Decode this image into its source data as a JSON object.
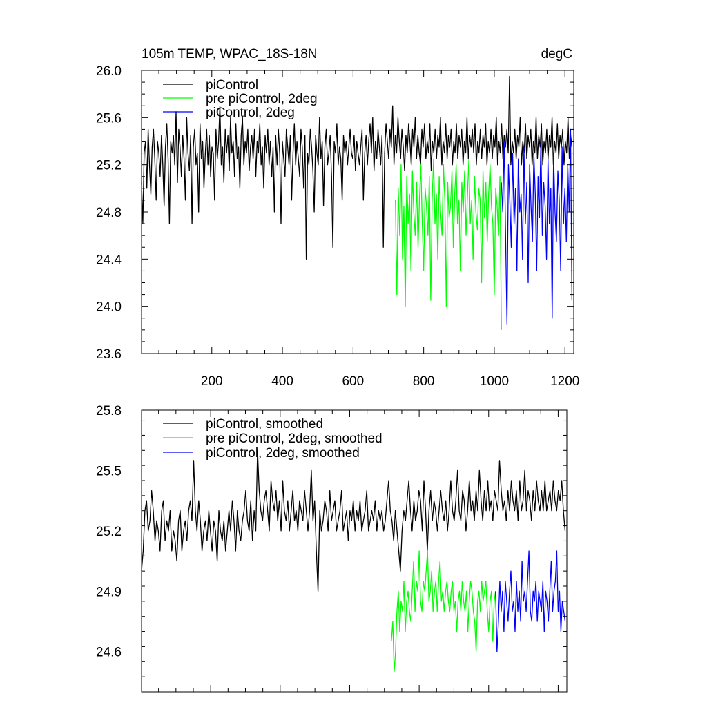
{
  "figure": {
    "top_panel": {
      "title_left": "105m TEMP, WPAC_18S-18N",
      "title_right": "degC"
    }
  },
  "colors": {
    "black": "#000000",
    "green": "#00ff00",
    "blue": "#0000ff"
  },
  "chart_data": [
    {
      "type": "line",
      "title": "105m TEMP, WPAC_18S-18N",
      "units": "degC",
      "xlim": [
        1,
        1225
      ],
      "ylim": [
        23.6,
        26.0
      ],
      "x_ticks": [
        200,
        400,
        600,
        800,
        1000,
        1200
      ],
      "x_tick_labels": [
        "200",
        "400",
        "600",
        "800",
        "1000",
        "1200"
      ],
      "y_ticks": [
        23.6,
        24.0,
        24.4,
        24.8,
        25.2,
        25.6,
        26.0
      ],
      "y_tick_labels": [
        "23.6",
        "24.0",
        "24.4",
        "24.8",
        "25.2",
        "25.6",
        "26.0"
      ],
      "grid": false,
      "legend_position": "top-left",
      "series": [
        {
          "name": "piControl",
          "color": "#000000",
          "x_start": 1,
          "x_end": 1220,
          "x_step": 4,
          "values": [
            25.05,
            24.7,
            25.3,
            25.4,
            25.0,
            25.5,
            25.2,
            24.95,
            25.35,
            25.5,
            25.25,
            24.9,
            25.4,
            25.3,
            25.1,
            25.45,
            25.2,
            24.85,
            25.35,
            25.55,
            25.25,
            24.7,
            25.4,
            25.3,
            25.45,
            25.2,
            25.65,
            25.05,
            25.5,
            25.35,
            25.1,
            25.45,
            25.25,
            24.9,
            25.6,
            25.3,
            25.15,
            25.45,
            24.7,
            25.35,
            25.5,
            25.2,
            25.3,
            24.8,
            25.55,
            25.25,
            25.4,
            25.0,
            25.3,
            25.5,
            25.2,
            25.45,
            25.1,
            25.35,
            25.3,
            24.9,
            25.5,
            25.25,
            25.4,
            25.7,
            25.2,
            25.35,
            25.05,
            25.5,
            25.3,
            25.45,
            25.15,
            25.6,
            25.3,
            25.4,
            25.1,
            25.55,
            25.25,
            25.35,
            25.0,
            25.45,
            25.6,
            25.2,
            25.4,
            25.3,
            25.5,
            25.15,
            25.35,
            25.45,
            25.25,
            25.5,
            25.1,
            25.4,
            25.3,
            25.55,
            25.2,
            25.35,
            25.0,
            25.45,
            25.3,
            25.5,
            25.2,
            25.4,
            25.1,
            25.35,
            24.8,
            25.45,
            25.2,
            25.5,
            25.3,
            24.7,
            25.4,
            25.25,
            25.1,
            25.5,
            25.35,
            25.2,
            25.45,
            24.9,
            25.3,
            25.55,
            25.2,
            25.4,
            25.25,
            25.1,
            25.5,
            25.35,
            25.0,
            25.45,
            24.4,
            25.3,
            25.2,
            25.5,
            25.35,
            25.15,
            24.8,
            25.45,
            25.3,
            25.2,
            25.6,
            25.25,
            25.4,
            24.85,
            25.35,
            25.5,
            25.2,
            25.3,
            25.45,
            25.1,
            24.5,
            25.4,
            25.3,
            25.55,
            25.2,
            25.35,
            25.25,
            24.9,
            25.45,
            25.3,
            25.4,
            25.2,
            25.35,
            25.5,
            25.3,
            25.25,
            25.45,
            25.15,
            25.4,
            25.3,
            25.2,
            25.35,
            25.5,
            24.9,
            25.3,
            25.45,
            25.2,
            25.4,
            25.55,
            25.3,
            25.6,
            25.15,
            25.4,
            25.25,
            25.5,
            25.35,
            25.2,
            25.45,
            24.5,
            25.3,
            25.55,
            25.4,
            25.25,
            25.5,
            25.35,
            25.7,
            25.2,
            25.45,
            25.3,
            25.6,
            25.4,
            25.25,
            25.5,
            25.35,
            25.15,
            25.45,
            25.3,
            25.55,
            25.4,
            25.2,
            25.5,
            25.35,
            25.6,
            25.25,
            25.45,
            25.3,
            25.2,
            25.5,
            25.35,
            25.55,
            25.25,
            25.4,
            25.3,
            25.55,
            25.15,
            25.4,
            25.3,
            25.5,
            25.25,
            25.45,
            25.35,
            25.6,
            25.2,
            25.4,
            25.3,
            25.55,
            25.25,
            25.45,
            25.35,
            25.5,
            25.2,
            25.4,
            25.3,
            25.55,
            25.25,
            25.45,
            25.35,
            25.5,
            25.2,
            25.4,
            25.3,
            25.6,
            25.25,
            25.45,
            25.35,
            25.5,
            25.3,
            25.55,
            25.2,
            25.4,
            25.3,
            25.5,
            25.25,
            25.45,
            25.35,
            25.55,
            25.2,
            25.4,
            25.3,
            25.5,
            25.25,
            25.45,
            25.35,
            25.6,
            25.2,
            25.4,
            25.3,
            25.55,
            25.25,
            25.45,
            25.35,
            25.5,
            25.3,
            25.95,
            25.2,
            25.4,
            25.3,
            25.5,
            25.25,
            25.45,
            25.35,
            25.6,
            25.2,
            25.4,
            25.3,
            25.55,
            25.25,
            25.45,
            25.35,
            25.5,
            25.2,
            25.4,
            25.3,
            25.6,
            25.25,
            25.45,
            25.35,
            25.55,
            25.2,
            25.4,
            25.3,
            25.5,
            25.25,
            25.45,
            25.35,
            25.6,
            25.2,
            25.4,
            25.3,
            25.55,
            25.25,
            25.45,
            25.35,
            25.5,
            25.2,
            25.4,
            25.3,
            25.6,
            25.25,
            25.45,
            25.35
          ]
        },
        {
          "name": "pre piControl, 2deg",
          "color": "#00ff00",
          "x_start": 720,
          "x_end": 1020,
          "x_step": 4,
          "values": [
            24.9,
            24.1,
            25.0,
            24.6,
            25.2,
            24.4,
            24.85,
            24.0,
            25.1,
            24.7,
            24.95,
            24.3,
            25.15,
            24.8,
            24.6,
            25.05,
            24.5,
            24.9,
            25.2,
            24.7,
            24.3,
            25.0,
            24.85,
            24.6,
            25.1,
            24.05,
            24.9,
            25.25,
            24.7,
            24.95,
            24.4,
            25.1,
            24.8,
            24.6,
            25.2,
            24.9,
            24.0,
            25.05,
            24.75,
            24.85,
            25.15,
            24.5,
            24.95,
            25.2,
            24.7,
            24.9,
            24.3,
            25.05,
            24.8,
            25.15,
            24.6,
            24.95,
            25.25,
            24.7,
            24.9,
            24.4,
            25.1,
            24.8,
            24.65,
            25.0,
            24.9,
            24.2,
            25.15,
            24.75,
            25.05,
            24.55,
            24.95,
            25.2,
            24.85,
            24.7,
            24.1,
            25.0,
            24.85,
            24.6,
            25.1,
            23.8
          ]
        },
        {
          "name": "piControl, 2deg",
          "color": "#0000ff",
          "x_start": 1020,
          "x_end": 1220,
          "x_step": 4,
          "values": [
            25.05,
            24.8,
            25.4,
            24.6,
            23.85,
            25.2,
            24.9,
            24.5,
            25.3,
            24.7,
            25.0,
            24.3,
            25.25,
            24.8,
            24.95,
            24.4,
            25.35,
            24.7,
            25.05,
            24.2,
            25.2,
            24.85,
            24.55,
            25.3,
            24.95,
            24.3,
            25.1,
            24.75,
            25.4,
            24.6,
            25.05,
            24.85,
            24.4,
            25.25,
            24.7,
            25.0,
            23.9,
            25.3,
            24.8,
            24.55,
            25.15,
            24.9,
            24.3,
            25.35,
            24.7,
            25.0,
            24.55,
            25.2,
            24.8,
            25.5,
            24.05
          ]
        }
      ]
    },
    {
      "type": "line",
      "xlim": [
        1,
        1225
      ],
      "ylim": [
        24.4,
        25.8
      ],
      "x_ticks": [
        200,
        400,
        600,
        800,
        1000,
        1200
      ],
      "y_ticks": [
        24.6,
        24.9,
        25.2,
        25.5,
        25.8
      ],
      "y_tick_labels": [
        "24.6",
        "24.9",
        "25.2",
        "25.5",
        "25.8"
      ],
      "grid": false,
      "legend_position": "top-left",
      "series": [
        {
          "name": "piControl, smoothed",
          "color": "#000000",
          "x_start": 1,
          "x_end": 1220,
          "x_step": 4,
          "values": [
            25.0,
            25.1,
            25.3,
            25.35,
            25.2,
            25.25,
            25.4,
            25.3,
            25.15,
            25.25,
            25.2,
            25.1,
            25.3,
            25.35,
            25.15,
            25.25,
            25.2,
            25.3,
            25.1,
            25.2,
            25.15,
            25.05,
            25.25,
            25.3,
            25.1,
            25.2,
            25.25,
            25.15,
            25.3,
            25.35,
            25.25,
            25.55,
            25.3,
            25.2,
            25.35,
            25.25,
            25.1,
            25.2,
            25.25,
            25.15,
            25.3,
            25.2,
            25.1,
            25.25,
            25.2,
            25.05,
            25.3,
            25.2,
            25.15,
            25.25,
            25.1,
            25.2,
            25.3,
            25.2,
            25.35,
            25.25,
            25.1,
            25.3,
            25.2,
            25.15,
            25.25,
            25.3,
            25.4,
            25.25,
            25.2,
            25.35,
            25.15,
            25.3,
            25.2,
            25.6,
            25.4,
            25.3,
            25.25,
            25.35,
            25.4,
            25.3,
            25.2,
            25.45,
            25.35,
            25.3,
            25.4,
            25.25,
            25.35,
            25.2,
            25.45,
            25.3,
            25.25,
            25.35,
            25.2,
            25.3,
            25.4,
            25.25,
            25.3,
            25.2,
            25.35,
            25.3,
            25.25,
            25.4,
            25.3,
            25.2,
            25.3,
            25.5,
            25.25,
            25.35,
            25.1,
            24.9,
            25.3,
            25.2,
            25.25,
            25.35,
            25.3,
            25.2,
            25.4,
            25.25,
            25.3,
            25.35,
            25.2,
            25.25,
            25.3,
            25.4,
            25.2,
            25.25,
            25.3,
            25.15,
            25.3,
            25.25,
            25.35,
            25.2,
            25.3,
            25.25,
            25.35,
            25.2,
            25.25,
            25.3,
            25.4,
            25.2,
            25.25,
            25.3,
            25.25,
            25.35,
            25.2,
            25.3,
            25.25,
            25.3,
            25.2,
            25.25,
            25.35,
            25.45,
            25.3,
            25.25,
            25.15,
            25.3,
            25.2,
            25.1,
            25.0,
            25.2,
            25.3,
            25.25,
            25.35,
            25.45,
            25.3,
            25.2,
            25.35,
            25.25,
            25.3,
            25.4,
            25.35,
            25.2,
            25.45,
            25.3,
            25.1,
            25.3,
            25.4,
            25.25,
            25.35,
            25.3,
            25.2,
            25.3,
            25.4,
            25.3,
            25.25,
            25.35,
            25.2,
            25.3,
            25.45,
            25.3,
            25.25,
            25.35,
            25.5,
            25.3,
            25.25,
            25.4,
            25.35,
            25.2,
            25.3,
            25.45,
            25.3,
            25.35,
            25.25,
            25.4,
            25.3,
            25.5,
            25.35,
            25.25,
            25.4,
            25.3,
            25.45,
            25.3,
            25.35,
            25.25,
            25.4,
            25.35,
            25.3,
            25.55,
            25.4,
            25.3,
            25.35,
            25.25,
            25.4,
            25.3,
            25.45,
            25.35,
            25.3,
            25.4,
            25.25,
            25.45,
            25.3,
            25.35,
            25.5,
            25.3,
            25.4,
            25.35,
            25.25,
            25.4,
            25.3,
            25.45,
            25.35,
            25.3,
            25.4,
            25.3,
            25.45,
            25.3,
            25.35,
            25.4,
            25.3,
            25.45,
            25.35,
            25.3,
            25.4,
            25.35,
            25.45,
            25.3,
            25.2
          ]
        },
        {
          "name": "pre piControl, 2deg, smoothed",
          "color": "#00ff00",
          "x_start": 720,
          "x_end": 1020,
          "x_step": 4,
          "values": [
            24.65,
            24.75,
            24.5,
            24.6,
            24.8,
            24.9,
            24.7,
            24.85,
            24.8,
            24.95,
            24.7,
            24.85,
            24.9,
            24.8,
            24.75,
            24.9,
            25.05,
            24.8,
            24.95,
            24.9,
            25.1,
            24.85,
            24.8,
            24.95,
            24.9,
            25.0,
            25.1,
            24.85,
            24.9,
            25.0,
            24.8,
            24.9,
            24.95,
            24.8,
            24.95,
            25.05,
            24.85,
            24.9,
            24.8,
            24.9,
            24.95,
            24.85,
            24.8,
            24.9,
            24.95,
            24.8,
            24.85,
            24.7,
            24.85,
            24.9,
            24.8,
            24.95,
            24.85,
            24.8,
            24.9,
            24.7,
            24.85,
            24.95,
            24.9,
            24.8,
            24.75,
            24.6,
            24.85,
            24.9,
            24.8,
            24.95,
            24.85,
            24.9,
            24.95,
            24.8,
            24.7,
            24.85,
            24.9,
            24.65,
            24.85,
            24.9
          ]
        },
        {
          "name": "piControl, 2deg, smoothed",
          "color": "#0000ff",
          "x_start": 1020,
          "x_end": 1220,
          "x_step": 4,
          "values": [
            24.9,
            24.6,
            24.75,
            24.95,
            24.8,
            24.9,
            24.7,
            24.95,
            24.85,
            24.75,
            24.9,
            25.0,
            24.8,
            24.85,
            24.7,
            24.95,
            24.8,
            24.9,
            24.75,
            25.05,
            24.85,
            24.9,
            24.8,
            24.95,
            25.1,
            24.8,
            24.75,
            24.9,
            24.85,
            24.95,
            24.75,
            24.9,
            24.85,
            24.8,
            24.95,
            24.7,
            24.9,
            24.85,
            24.75,
            24.9,
            25.05,
            24.8,
            24.9,
            24.95,
            25.1,
            24.8,
            24.9,
            24.7,
            24.85,
            24.8,
            24.75
          ]
        }
      ]
    }
  ]
}
